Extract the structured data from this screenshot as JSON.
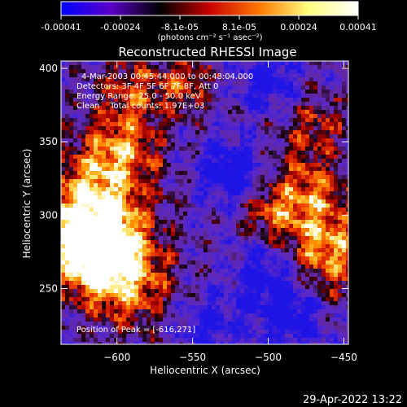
{
  "colorbar": {
    "ticks": [
      "-0.00041",
      "-0.00024",
      "-8.1e-05",
      "8.1e-05",
      "0.00024",
      "0.00041"
    ],
    "unit": "(photons cm⁻² s⁻¹ asec⁻²)",
    "range": [
      -0.00041,
      0.00041
    ],
    "colors": [
      "#0000ff",
      "#5a00c8",
      "#000000",
      "#c80000",
      "#ff7800",
      "#ffff80",
      "#ffffff"
    ]
  },
  "chart_data": {
    "type": "heatmap",
    "title": "Reconstructed RHESSI Image",
    "xlabel": "Heliocentric X (arcsec)",
    "ylabel": "Heliocentric Y (arcsec)",
    "xlim": [
      -637,
      -447
    ],
    "ylim": [
      212,
      405
    ],
    "xticks": [
      {
        "value": -600,
        "label": "−600"
      },
      {
        "value": -550,
        "label": "−550"
      },
      {
        "value": -500,
        "label": "−500"
      },
      {
        "value": -450,
        "label": "−450"
      }
    ],
    "yticks": [
      {
        "value": 250,
        "label": "250"
      },
      {
        "value": 300,
        "label": "300"
      },
      {
        "value": 350,
        "label": "350"
      },
      {
        "value": 400,
        "label": "400"
      }
    ],
    "annotations": [
      "4-Mar-2003 00:45:44.000 to 00:48:04.000",
      "Detectors: 3F 4F 5F 6F 7F 8F, Att 0",
      "Energy Range: 25.0 - 50.0 keV",
      "Clean    Total counts: 1.97E+03"
    ],
    "peak_label": "Position of Peak = [-616,271]",
    "peak": [
      -616,
      271
    ]
  },
  "footer": {
    "timestamp": "29-Apr-2022 13:22"
  }
}
